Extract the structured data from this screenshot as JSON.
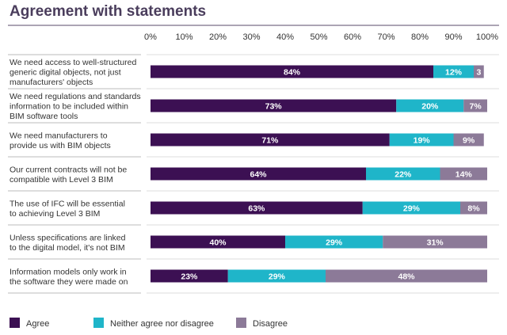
{
  "chart_data": {
    "type": "bar",
    "orientation": "horizontal",
    "stacked": true,
    "title": "Agreement with statements",
    "xlim": [
      0,
      100
    ],
    "tick_labels": [
      "0%",
      "10%",
      "20%",
      "30%",
      "40%",
      "50%",
      "60%",
      "70%",
      "80%",
      "90%",
      "100%"
    ],
    "categories": [
      [
        "We need access to well-structured",
        "generic digital objects, not just",
        "manufacturers' objects"
      ],
      [
        "We need regulations and standards",
        "information to be included within",
        "BIM software tools"
      ],
      [
        "We need manufacturers to",
        "provide us with BIM objects"
      ],
      [
        "Our current contracts will not be",
        "compatible with Level 3 BIM"
      ],
      [
        "The use of IFC will be essential",
        "to achieving Level 3 BIM"
      ],
      [
        "Unless specifications are linked",
        "to the digital model, it's not BIM"
      ],
      [
        "Information models only work in",
        "the software they were made on"
      ]
    ],
    "series": [
      {
        "name": "Agree",
        "color": "#3c1053",
        "text_color": "#ffffff",
        "values": [
          84,
          73,
          71,
          64,
          63,
          40,
          23
        ]
      },
      {
        "name": "Neither agree nor disagree",
        "color": "#1fb5c9",
        "text_color": "#ffffff",
        "values": [
          12,
          20,
          19,
          22,
          29,
          29,
          29
        ]
      },
      {
        "name": "Disagree",
        "color": "#8c7a98",
        "text_color": "#ffffff",
        "values": [
          3,
          7,
          9,
          14,
          8,
          31,
          48
        ]
      }
    ],
    "value_labels": [
      [
        "84%",
        "12%",
        "3"
      ],
      [
        "73%",
        "20%",
        "7%"
      ],
      [
        "71%",
        "19%",
        "9%"
      ],
      [
        "64%",
        "22%",
        "14%"
      ],
      [
        "63%",
        "29%",
        "8%"
      ],
      [
        "40%",
        "29%",
        "31%"
      ],
      [
        "23%",
        "29%",
        "48%"
      ]
    ],
    "legend": [
      "Agree",
      "Neither agree nor disagree",
      "Disagree"
    ]
  }
}
